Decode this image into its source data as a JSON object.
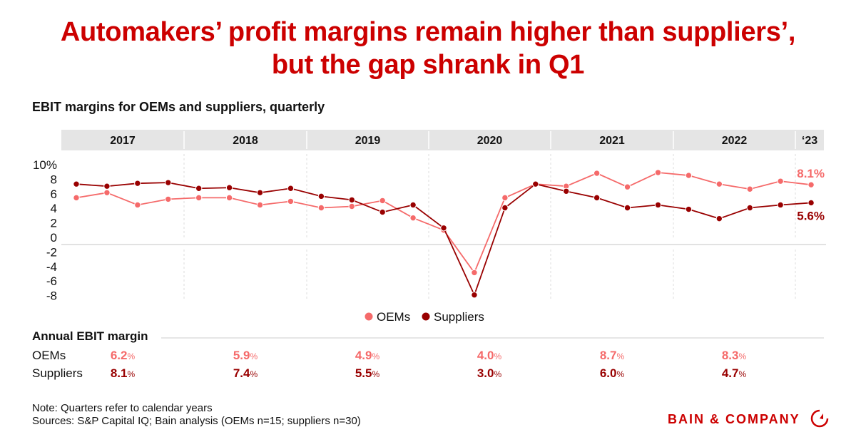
{
  "title_line1": "Automakers’ profit margins remain higher than suppliers’,",
  "title_line2": "but the gap shrank in Q1",
  "chart_data": {
    "type": "line",
    "title": "EBIT margins for OEMs and suppliers, quarterly",
    "years": [
      "2017",
      "2018",
      "2019",
      "2020",
      "2021",
      "2022",
      "‘23"
    ],
    "x": [
      "2017 Q1",
      "2017 Q2",
      "2017 Q3",
      "2017 Q4",
      "2018 Q1",
      "2018 Q2",
      "2018 Q3",
      "2018 Q4",
      "2019 Q1",
      "2019 Q2",
      "2019 Q3",
      "2019 Q4",
      "2020 Q1",
      "2020 Q2",
      "2020 Q3",
      "2020 Q4",
      "2021 Q1",
      "2021 Q2",
      "2021 Q3",
      "2021 Q4",
      "2022 Q1",
      "2022 Q2",
      "2022 Q3",
      "2022 Q4",
      "2023 Q1"
    ],
    "yticks": [
      "10%",
      "8",
      "6",
      "4",
      "2",
      "0",
      "-2",
      "-4",
      "-6",
      "-8"
    ],
    "ytick_values": [
      10,
      8,
      6,
      4,
      2,
      0,
      -2,
      -4,
      -6,
      -8
    ],
    "ylim": [
      -8,
      10
    ],
    "series": [
      {
        "name": "OEMs",
        "color": "#f56a6a",
        "end_label": "8.1%",
        "values": [
          6.3,
          7.0,
          5.3,
          6.1,
          6.3,
          6.3,
          5.3,
          5.8,
          4.9,
          5.1,
          5.9,
          3.5,
          1.8,
          -4.1,
          6.3,
          8.2,
          7.9,
          9.7,
          7.8,
          9.8,
          9.4,
          8.2,
          7.5,
          8.6,
          8.1
        ]
      },
      {
        "name": "Suppliers",
        "color": "#990000",
        "end_label": "5.6%",
        "values": [
          8.2,
          7.9,
          8.3,
          8.4,
          7.6,
          7.7,
          7.0,
          7.6,
          6.5,
          6.0,
          4.3,
          5.3,
          2.1,
          -7.2,
          4.9,
          8.2,
          7.2,
          6.3,
          4.9,
          5.3,
          4.7,
          3.4,
          4.9,
          5.3,
          5.6
        ]
      }
    ],
    "legend": [
      "OEMs",
      "Suppliers"
    ],
    "legend_position": "bottom-center"
  },
  "annual": {
    "title": "Annual EBIT margin",
    "oem_label": "OEMs",
    "supplier_label": "Suppliers",
    "oems": [
      "6.2",
      "5.9",
      "4.9",
      "4.0",
      "8.7",
      "8.3"
    ],
    "suppliers": [
      "8.1",
      "7.4",
      "5.5",
      "3.0",
      "6.0",
      "4.7"
    ],
    "unit": "%"
  },
  "note": "Note: Quarters refer to calendar years",
  "sources": "Sources: S&P Capital IQ; Bain analysis (OEMs n=15; suppliers n=30)",
  "logo": "BAIN & COMPANY"
}
